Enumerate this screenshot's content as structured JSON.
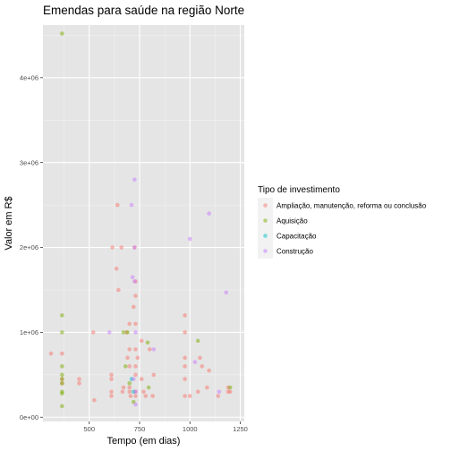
{
  "chart_data": {
    "type": "scatter",
    "title": "Emendas para saúde na região Norte",
    "xlabel": "Tempo (em dias)",
    "ylabel": "Valor em R$",
    "xlim": [
      270,
      1270
    ],
    "ylim": [
      -50000,
      4620000
    ],
    "x_ticks": [
      {
        "value": 500,
        "label": "500"
      },
      {
        "value": 750,
        "label": "750"
      },
      {
        "value": 1000,
        "label": "1000"
      },
      {
        "value": 1250,
        "label": "1250"
      }
    ],
    "y_ticks": [
      {
        "value": 0,
        "label": "0e+00"
      },
      {
        "value": 1000000,
        "label": "1e+06"
      },
      {
        "value": 2000000,
        "label": "2e+06"
      },
      {
        "value": 3000000,
        "label": "3e+06"
      },
      {
        "value": 4000000,
        "label": "4e+06"
      }
    ],
    "grid": true,
    "legend": {
      "title": "Tipo de investimento",
      "position": "right"
    },
    "series": [
      {
        "name": "Ampliação, manutenção, reforma ou conclusão",
        "color": "#F8766D",
        "points": [
          [
            310,
            750000
          ],
          [
            365,
            750000
          ],
          [
            365,
            450000
          ],
          [
            365,
            400000
          ],
          [
            450,
            450000
          ],
          [
            450,
            400000
          ],
          [
            520,
            1000000
          ],
          [
            525,
            200000
          ],
          [
            610,
            500000
          ],
          [
            610,
            450000
          ],
          [
            610,
            300000
          ],
          [
            610,
            250000
          ],
          [
            615,
            2000000
          ],
          [
            635,
            1750000
          ],
          [
            640,
            2500000
          ],
          [
            645,
            1500000
          ],
          [
            660,
            2000000
          ],
          [
            665,
            300000
          ],
          [
            670,
            350000
          ],
          [
            685,
            1000000
          ],
          [
            690,
            700000
          ],
          [
            700,
            1100000
          ],
          [
            700,
            800000
          ],
          [
            700,
            600000
          ],
          [
            700,
            350000
          ],
          [
            700,
            300000
          ],
          [
            705,
            250000
          ],
          [
            720,
            1300000
          ],
          [
            725,
            2000000
          ],
          [
            730,
            1600000
          ],
          [
            730,
            1430000
          ],
          [
            730,
            1100000
          ],
          [
            730,
            800000
          ],
          [
            730,
            600000
          ],
          [
            730,
            500000
          ],
          [
            730,
            300000
          ],
          [
            730,
            250000
          ],
          [
            740,
            700000
          ],
          [
            760,
            900000
          ],
          [
            760,
            450000
          ],
          [
            770,
            300000
          ],
          [
            780,
            250000
          ],
          [
            800,
            800000
          ],
          [
            815,
            250000
          ],
          [
            820,
            500000
          ],
          [
            975,
            1200000
          ],
          [
            975,
            1000000
          ],
          [
            975,
            700000
          ],
          [
            975,
            600000
          ],
          [
            975,
            450000
          ],
          [
            975,
            250000
          ],
          [
            1000,
            250000
          ],
          [
            1040,
            300000
          ],
          [
            1050,
            700000
          ],
          [
            1060,
            600000
          ],
          [
            1085,
            350000
          ],
          [
            1095,
            550000
          ],
          [
            1140,
            250000
          ],
          [
            1190,
            350000
          ],
          [
            1190,
            300000
          ],
          [
            1200,
            300000
          ]
        ]
      },
      {
        "name": "Aquisição",
        "color": "#7CAE00",
        "points": [
          [
            365,
            4520000
          ],
          [
            365,
            1200000
          ],
          [
            365,
            1000000
          ],
          [
            365,
            600000
          ],
          [
            365,
            500000
          ],
          [
            365,
            450000
          ],
          [
            365,
            400000
          ],
          [
            365,
            300000
          ],
          [
            365,
            280000
          ],
          [
            365,
            130000
          ],
          [
            670,
            1000000
          ],
          [
            680,
            600000
          ],
          [
            690,
            1000000
          ],
          [
            700,
            400000
          ],
          [
            720,
            180000
          ],
          [
            790,
            880000
          ],
          [
            795,
            350000
          ],
          [
            1040,
            900000
          ],
          [
            1200,
            350000
          ]
        ]
      },
      {
        "name": "Capacitação",
        "color": "#00BFC4",
        "points": [
          [
            710,
            450000
          ],
          [
            720,
            300000
          ]
        ]
      },
      {
        "name": "Construção",
        "color": "#C77CFF",
        "points": [
          [
            600,
            1000000
          ],
          [
            710,
            2500000
          ],
          [
            715,
            1650000
          ],
          [
            725,
            2800000
          ],
          [
            725,
            2000000
          ],
          [
            725,
            1600000
          ],
          [
            730,
            1000000
          ],
          [
            720,
            450000
          ],
          [
            730,
            300000
          ],
          [
            730,
            150000
          ],
          [
            820,
            800000
          ],
          [
            1000,
            2100000
          ],
          [
            1025,
            650000
          ],
          [
            1095,
            2400000
          ],
          [
            1145,
            300000
          ],
          [
            1180,
            1470000
          ]
        ]
      }
    ]
  }
}
